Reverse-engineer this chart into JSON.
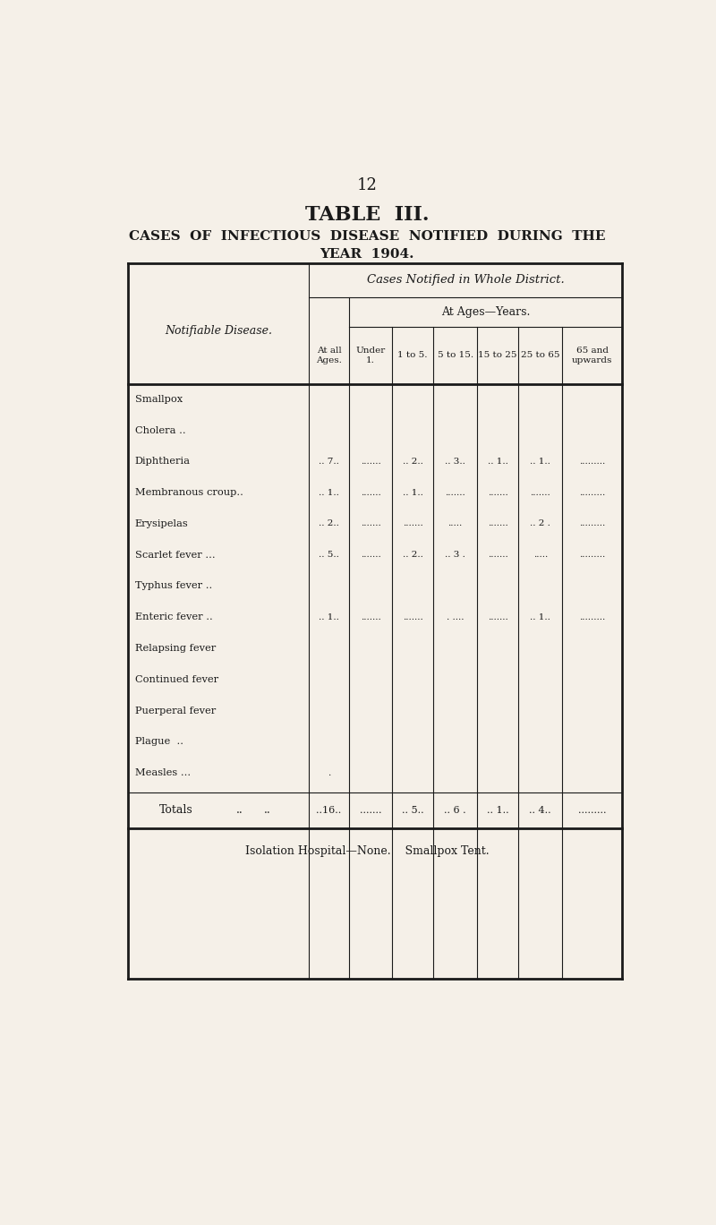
{
  "page_number": "12",
  "title_line1": "TABLE  III.",
  "title_line2": "CASES  OF  INFECTIOUS  DISEASE  NOTIFIED  DURING  THE",
  "title_line3": "YEAR  1904.",
  "table_header1": "Cases Notified in Whole District.",
  "table_header2": "At Ages—Years.",
  "col_header_left": "Notifiable Disease.",
  "col_header_all_ages": "At all\nAges.",
  "col_headers_ages": [
    "Under\n1.",
    "1 to 5.",
    "5 to 15.",
    "15 to 25",
    "25 to 65",
    "65 and\nupwards"
  ],
  "diseases": [
    "Smallpox        ..    ..",
    "Cholera ..      ..    ..",
    "Diphtheria      ..    ..",
    "Membranous croup..",
    "Erysipelas      ..    ..",
    "Scarlet fever ...     ..",
    "Typhus fever ..       ..",
    "Enteric fever ..      ..",
    "Relapsing fever       ..",
    "Continued fever       ..",
    "Puerperal fever       ..",
    "Plague  ..      ..    ..",
    "Measles ...     ..    .."
  ],
  "disease_display": [
    "Smallpox",
    "Cholera ..",
    "Diphtheria",
    "Membranous croup..",
    "Erysipelas",
    "Scarlet fever ...",
    "Typhus fever ..",
    "Enteric fever ..",
    "Relapsing fever",
    "Continued fever",
    "Puerperal fever",
    "Plague  ..",
    "Measles ..."
  ],
  "disease_suffix": [
    "..    ..",
    "",
    "..    ..",
    "",
    "..    ..",
    "      ..",
    "      ..",
    "..    ..",
    "      ..",
    "      ..",
    "      ..",
    "..    ..",
    "..    .."
  ],
  "data_at_all_ages": [
    "",
    "",
    ".. 7..",
    ".. 1..",
    ".. 2..",
    ".. 5..",
    "",
    ".. 1..",
    "",
    "",
    "",
    "",
    "."
  ],
  "data_under_1": [
    "",
    "",
    ".......",
    ".......",
    ".......",
    ".......",
    "",
    ".......",
    "",
    "",
    "",
    "",
    ""
  ],
  "data_1_to_5": [
    "",
    "",
    ".. 2..",
    ".. 1..",
    ".......",
    ".. 2..",
    "",
    ".......",
    "",
    "",
    "",
    "",
    ""
  ],
  "data_5_to_15": [
    "",
    "",
    ".. 3..",
    ".......",
    ".....",
    ".. 3 .",
    "",
    ". ....",
    "",
    "",
    "",
    "",
    ""
  ],
  "data_15_to_25": [
    "",
    "",
    ".. 1..",
    ".......",
    ".......",
    ".......",
    "",
    ".......",
    "",
    "",
    "",
    "",
    ""
  ],
  "data_25_to_65": [
    "",
    "",
    ".. 1..",
    ".......",
    ".. 2 .",
    ".....",
    "",
    ".. 1..",
    "",
    "",
    "",
    "",
    ""
  ],
  "data_65_up": [
    "",
    "",
    ".........",
    ".........",
    ".........",
    ".........",
    "",
    ".........",
    "",
    "",
    "",
    "",
    ""
  ],
  "totals_label": "Totals",
  "totals_dots": "..    ..",
  "totals_at_all_ages": "..16..",
  "totals_under_1": ".......",
  "totals_1_to_5": ".. 5..",
  "totals_5_to_15": ".. 6 .",
  "totals_15_to_25": ".. 1..",
  "totals_25_to_65": ".. 4..",
  "totals_65_up": ".........",
  "footer": "Isolation Hospital—None.    Smallpox Tent.",
  "bg_color": "#f5f0e8",
  "text_color": "#1a1a1a",
  "line_color": "#1a1a1a"
}
